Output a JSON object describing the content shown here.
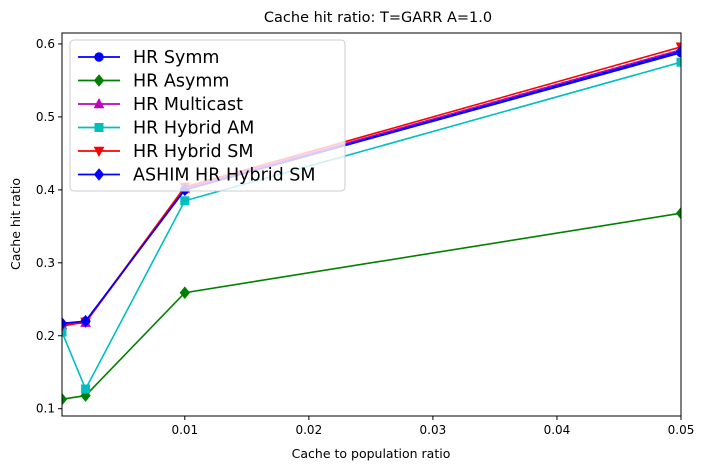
{
  "chart_data": {
    "type": "line",
    "title": "Cache hit ratio: T=GARR A=1.0",
    "xlabel": "Cache to population ratio",
    "ylabel": "Cache hit ratio",
    "xlim": [
      0.0001,
      0.05
    ],
    "ylim": [
      0.09,
      0.615
    ],
    "xticks": [
      0.01,
      0.02,
      0.03,
      0.04,
      0.05
    ],
    "xtick_labels": [
      "0.01",
      "0.02",
      "0.03",
      "0.04",
      "0.05"
    ],
    "yticks": [
      0.1,
      0.2,
      0.3,
      0.4,
      0.5,
      0.6
    ],
    "ytick_labels": [
      "0.1",
      "0.2",
      "0.3",
      "0.4",
      "0.5",
      "0.6"
    ],
    "grid": false,
    "legend_position": "top-left",
    "x": [
      0.0001,
      0.002,
      0.01,
      0.05
    ],
    "series": [
      {
        "name": "HR Symm",
        "color": "#0000ff",
        "marker": "circle",
        "values": [
          0.215,
          0.22,
          0.4,
          0.588
        ]
      },
      {
        "name": "HR Asymm",
        "color": "#008000",
        "marker": "diamond",
        "values": [
          0.113,
          0.118,
          0.259,
          0.368
        ]
      },
      {
        "name": "HR Multicast",
        "color": "#bf00bf",
        "marker": "triangle-up",
        "values": [
          0.215,
          0.218,
          0.402,
          0.592
        ]
      },
      {
        "name": "HR Hybrid AM",
        "color": "#00bfbf",
        "marker": "square",
        "values": [
          0.205,
          0.127,
          0.385,
          0.575
        ]
      },
      {
        "name": "HR Hybrid SM",
        "color": "#ff0000",
        "marker": "triangle-down",
        "values": [
          0.213,
          0.219,
          0.404,
          0.596
        ]
      },
      {
        "name": "ASHIM HR Hybrid SM",
        "color": "#0000ff",
        "marker": "diamond",
        "values": [
          0.217,
          0.22,
          0.4,
          0.59
        ]
      }
    ]
  }
}
